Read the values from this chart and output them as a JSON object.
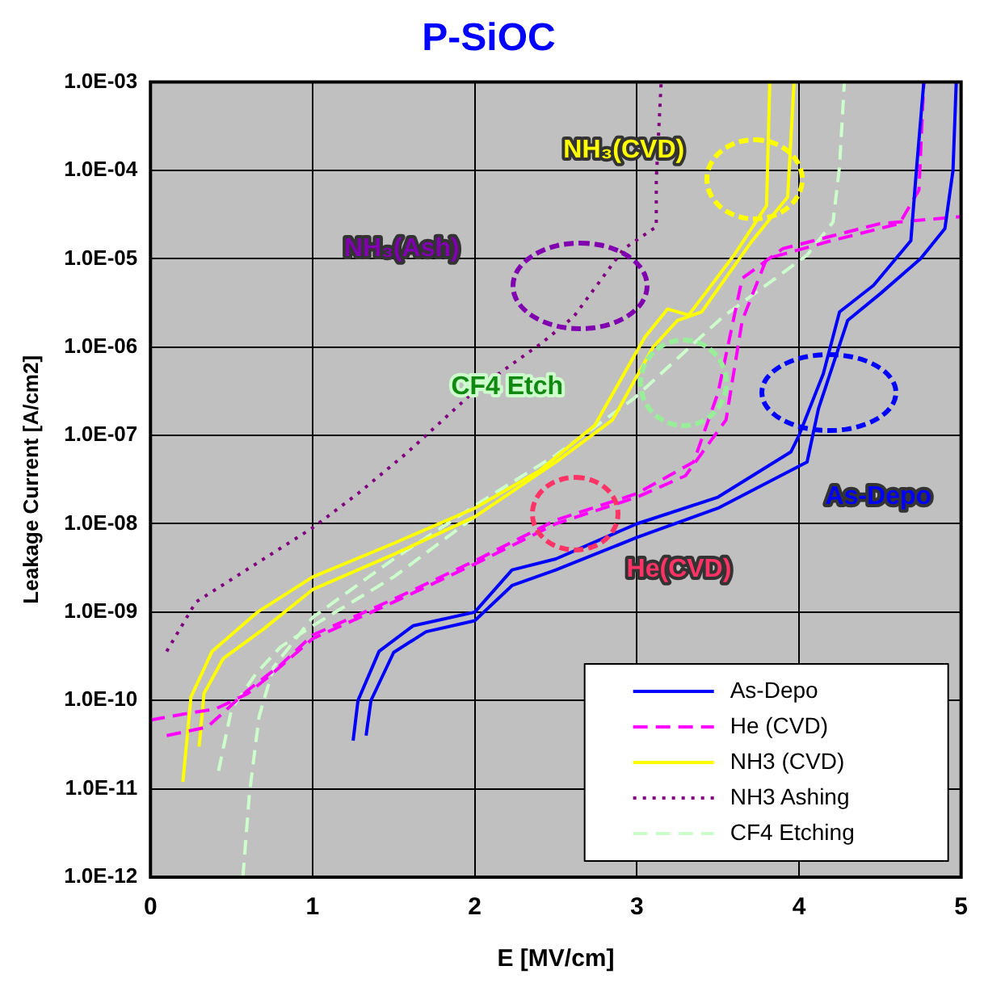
{
  "chart_data": {
    "type": "line",
    "title": "P-SiOC",
    "xlabel": "E [MV/cm]",
    "ylabel": "Leakage Current [A/cm2]",
    "xlim": [
      0,
      5
    ],
    "xticks": [
      0,
      1,
      2,
      3,
      4,
      5
    ],
    "ylim": [
      1e-12,
      0.001
    ],
    "yticks": [
      {
        "value": 1e-12,
        "label": "1.0E-12"
      },
      {
        "value": 1e-11,
        "label": "1.0E-11"
      },
      {
        "value": 1e-10,
        "label": "1.0E-10"
      },
      {
        "value": 1e-09,
        "label": "1.0E-09"
      },
      {
        "value": 1e-08,
        "label": "1.0E-08"
      },
      {
        "value": 1e-07,
        "label": "1.0E-07"
      },
      {
        "value": 1e-06,
        "label": "1.0E-06"
      },
      {
        "value": 1e-05,
        "label": "1.0E-05"
      },
      {
        "value": 0.0001,
        "label": "1.0E-04"
      },
      {
        "value": 0.001,
        "label": "1.0E-03"
      }
    ],
    "log": "y",
    "grid": true,
    "legend": "bottom right",
    "marker": "none",
    "series": [
      {
        "name": "As-Depo",
        "color": "#0000ff",
        "line_style": "solid",
        "x": [
          1.25,
          1.28,
          1.41,
          1.62,
          2.0,
          2.23,
          2.5,
          3.0,
          3.5,
          3.95,
          4.0,
          4.15,
          4.25,
          4.46,
          4.69,
          4.72,
          4.77
        ],
        "values": [
          3.5e-11,
          1e-10,
          3.6e-10,
          7e-10,
          1e-09,
          3e-09,
          4e-09,
          1e-08,
          2e-08,
          6.5e-08,
          1e-07,
          5e-07,
          2.5e-06,
          5e-06,
          1.6e-05,
          8e-05,
          0.001
        ]
      },
      {
        "color": "#0000ff",
        "line_style": "solid",
        "x": [
          1.33,
          1.36,
          1.5,
          1.7,
          2.0,
          2.23,
          2.5,
          3.0,
          3.5,
          4.05,
          4.12,
          4.3,
          4.5,
          4.75,
          4.9,
          4.95,
          4.97
        ],
        "values": [
          4e-11,
          1e-10,
          3.5e-10,
          6e-10,
          8e-10,
          2e-09,
          3e-09,
          7e-09,
          1.5e-08,
          5e-08,
          2e-07,
          2e-06,
          4e-06,
          1e-05,
          2.2e-05,
          0.0001,
          0.001
        ]
      },
      {
        "name": "He (CVD)",
        "color": "#ff00ff",
        "line_style": "dashed",
        "x": [
          0,
          0.2,
          0.4,
          0.6,
          0.75,
          1.0,
          1.5,
          2.0,
          2.5,
          3.0,
          3.3,
          3.55,
          3.65,
          3.8,
          4.2,
          4.62,
          4.74,
          4.77
        ],
        "values": [
          6e-11,
          7e-11,
          8e-11,
          1.2e-10,
          2e-10,
          5e-10,
          1.3e-09,
          3.5e-09,
          1e-08,
          2e-08,
          3.5e-08,
          1.5e-07,
          2e-06,
          1e-05,
          1.6e-05,
          2.5e-05,
          6e-05,
          0.001
        ]
      },
      {
        "color": "#ff00ff",
        "line_style": "dashed",
        "x": [
          0.1,
          0.35,
          0.6,
          0.8,
          1.0,
          1.5,
          2.0,
          2.5,
          3.0,
          3.35,
          3.5,
          3.65,
          3.9,
          4.5,
          5.0
        ],
        "values": [
          4e-11,
          5e-11,
          1.3e-10,
          2.5e-10,
          5.5e-10,
          1.4e-09,
          3.8e-09,
          1.1e-08,
          2.2e-08,
          5e-08,
          3e-07,
          6e-06,
          1.3e-05,
          2.5e-05,
          3e-05
        ]
      },
      {
        "name": "NH3 (CVD)",
        "color": "#ffff00",
        "line_style": "solid",
        "x": [
          0.2,
          0.25,
          0.38,
          0.66,
          1.0,
          1.5,
          2.0,
          2.4,
          2.74,
          3.05,
          3.19,
          3.32,
          3.6,
          3.8,
          3.82
        ],
        "values": [
          1.2e-11,
          1.1e-10,
          3.6e-10,
          1e-09,
          2.5e-09,
          6e-09,
          1.5e-08,
          4e-08,
          1.3e-07,
          1.3e-06,
          2.7e-06,
          2.3e-06,
          1.1e-05,
          4e-05,
          0.001
        ]
      },
      {
        "color": "#ffff00",
        "line_style": "solid",
        "x": [
          0.3,
          0.33,
          0.45,
          0.7,
          1.0,
          1.5,
          2.0,
          2.5,
          2.85,
          3.1,
          3.25,
          3.4,
          3.7,
          3.93,
          3.97
        ],
        "values": [
          3e-11,
          1.2e-10,
          3e-10,
          6.5e-10,
          1.8e-09,
          4.5e-09,
          1.2e-08,
          5e-08,
          1.5e-07,
          1e-06,
          2e-06,
          2.5e-06,
          1.5e-05,
          5e-05,
          0.001
        ]
      },
      {
        "name": "NH3 Ashing",
        "color": "#800080",
        "line_style": "dotted",
        "x": [
          0.1,
          0.28,
          1.0,
          1.28,
          1.58,
          2.0,
          2.41,
          2.61,
          2.92,
          3.12,
          3.12,
          3.15
        ],
        "values": [
          3.6e-10,
          1.3e-09,
          9e-09,
          2.2e-08,
          6.3e-08,
          3.2e-07,
          1.1e-06,
          2.2e-06,
          1.3e-05,
          2.3e-05,
          8e-05,
          0.001
        ]
      },
      {
        "name": "CF4 Etching",
        "color": "#ccffcc",
        "line_style": "dashed",
        "x": [
          0.57,
          0.61,
          0.67,
          0.76,
          1.0,
          1.5,
          2.0,
          2.5,
          2.98,
          3.53,
          4.05,
          4.21,
          4.25,
          4.28
        ],
        "values": [
          1e-12,
          8.7e-12,
          6.6e-11,
          2.4e-10,
          8.7e-10,
          4e-09,
          1.6e-08,
          6e-08,
          2.6e-07,
          2.2e-06,
          1.1e-05,
          2.6e-05,
          0.00011,
          0.001
        ]
      },
      {
        "color": "#ccffcc",
        "line_style": "dashed",
        "x": [
          0.42,
          0.5,
          0.65,
          0.8,
          1.0,
          1.5,
          2.0
        ],
        "values": [
          1.6e-11,
          8e-11,
          2e-10,
          4e-10,
          7e-10,
          2.5e-09,
          1.2e-08
        ]
      }
    ],
    "annotations": [
      "NH₃(CVD)",
      "NH₃(Ash)",
      "CF4 Etch",
      "As-Depo",
      "He(CVD)"
    ]
  }
}
